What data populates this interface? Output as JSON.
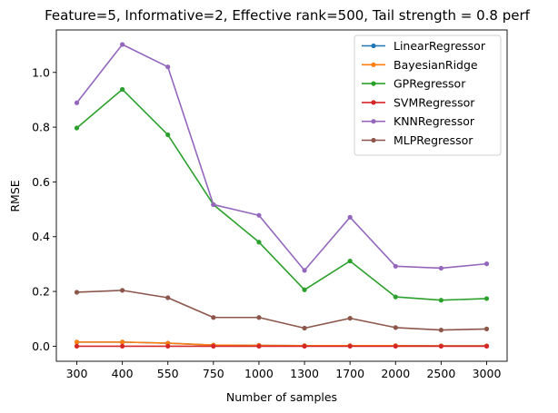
{
  "chart_data": {
    "type": "line",
    "title": "Feature=5, Informative=2, Effective rank=500, Tail strength = 0.8 perf",
    "xlabel": "Number of samples",
    "ylabel": "RMSE",
    "categories": [
      "300",
      "400",
      "550",
      "750",
      "1000",
      "1300",
      "1700",
      "2000",
      "2500",
      "3000"
    ],
    "yticks": [
      "0.0",
      "0.2",
      "0.4",
      "0.6",
      "0.8",
      "1.0"
    ],
    "ylim": [
      -0.055,
      1.155
    ],
    "grid": false,
    "legend_position": "upper right",
    "series": [
      {
        "name": "LinearRegressor",
        "color": "#1f77b4",
        "values": [
          0.015,
          0.015,
          0.011,
          0.004,
          0.003,
          0.002,
          0.002,
          0.002,
          0.001,
          0.001
        ]
      },
      {
        "name": "BayesianRidge",
        "color": "#ff7f0e",
        "values": [
          0.015,
          0.015,
          0.011,
          0.004,
          0.003,
          0.002,
          0.002,
          0.002,
          0.001,
          0.001
        ]
      },
      {
        "name": "GPRegressor",
        "color": "#2ca02c",
        "values": [
          0.797,
          0.938,
          0.772,
          0.517,
          0.38,
          0.206,
          0.311,
          0.18,
          0.168,
          0.174
        ]
      },
      {
        "name": "SVMRegressor",
        "color": "#d62728",
        "values": [
          0.0,
          0.0,
          0.0,
          0.0,
          0.0,
          0.0,
          0.0,
          0.0,
          0.0,
          0.0
        ]
      },
      {
        "name": "KNNRegressor",
        "color": "#9467bd",
        "values": [
          0.889,
          1.102,
          1.02,
          0.517,
          0.478,
          0.277,
          0.471,
          0.292,
          0.285,
          0.301
        ]
      },
      {
        "name": "MLPRegressor",
        "color": "#8c564b",
        "values": [
          0.197,
          0.204,
          0.177,
          0.105,
          0.105,
          0.066,
          0.102,
          0.068,
          0.059,
          0.063
        ]
      }
    ]
  }
}
